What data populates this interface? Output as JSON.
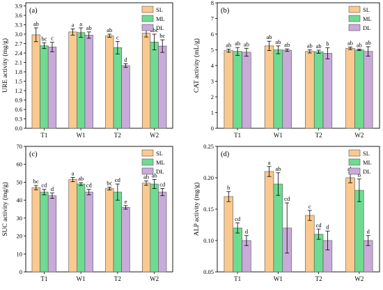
{
  "colors": {
    "SL": "#fac98f",
    "ML": "#6fdb90",
    "DL": "#c9abd9"
  },
  "legend_labels": [
    "SL",
    "ML",
    "DL"
  ],
  "chart_data": [
    {
      "panel": "(a)",
      "type": "bar",
      "ylabel": "URE activity (mg/g)",
      "ylim": [
        0,
        4.0
      ],
      "yticks": [
        "0.0",
        "0.3",
        "0.6",
        "0.9",
        "1.2",
        "1.5",
        "1.8",
        "2.1",
        "2.4",
        "2.7",
        "3.0",
        "3.3",
        "3.6",
        "3.9"
      ],
      "ytick_step": 0.3,
      "categories": [
        "T1",
        "W1",
        "T2",
        "W2"
      ],
      "series": [
        {
          "name": "SL",
          "values": [
            2.98,
            3.07,
            2.95,
            3.03
          ],
          "errors": [
            0.22,
            0.1,
            0.05,
            0.12
          ],
          "letters": [
            "ab",
            "a",
            "ab",
            "a"
          ]
        },
        {
          "name": "ML",
          "values": [
            2.63,
            3.05,
            2.57,
            2.75
          ],
          "errors": [
            0.09,
            0.15,
            0.2,
            0.25
          ],
          "letters": [
            "bc",
            "a",
            "c",
            "abc"
          ]
        },
        {
          "name": "DL",
          "values": [
            2.59,
            2.97,
            2.0,
            2.62
          ],
          "errors": [
            0.15,
            0.1,
            0.06,
            0.2
          ],
          "letters": [
            "c",
            "ab",
            "d",
            "bc"
          ]
        }
      ],
      "legend": "top-right",
      "grid": false
    },
    {
      "panel": "(b)",
      "type": "bar",
      "ylabel": "CAT activity (mL/g)",
      "ylim": [
        0,
        8
      ],
      "yticks": [
        "0",
        "1",
        "2",
        "3",
        "4",
        "5",
        "6",
        "7",
        "8"
      ],
      "ytick_step": 1,
      "categories": [
        "T1",
        "W1",
        "T2",
        "W2"
      ],
      "series": [
        {
          "name": "SL",
          "values": [
            4.95,
            5.25,
            4.9,
            5.1
          ],
          "errors": [
            0.1,
            0.3,
            0.1,
            0.08
          ],
          "letters": [
            "ab",
            "ab",
            "ab",
            "ab"
          ]
        },
        {
          "name": "ML",
          "values": [
            4.9,
            5.0,
            4.88,
            5.0
          ],
          "errors": [
            0.25,
            0.25,
            0.1,
            0.05
          ],
          "letters": [
            "ab",
            "ab",
            "ab",
            "ab"
          ]
        },
        {
          "name": "DL",
          "values": [
            4.85,
            4.98,
            4.78,
            4.9
          ],
          "errors": [
            0.25,
            0.08,
            0.35,
            0.3
          ],
          "letters": [
            "ab",
            "ab",
            "b",
            "ab"
          ]
        }
      ],
      "legend": "top-right",
      "grid": false
    },
    {
      "panel": "(c)",
      "type": "bar",
      "ylabel": "SUC activity (mg/g)",
      "ylim": [
        0,
        70
      ],
      "yticks": [
        "0",
        "10",
        "20",
        "30",
        "40",
        "50",
        "60",
        "70"
      ],
      "ytick_step": 10,
      "categories": [
        "T1",
        "W1",
        "T2",
        "W2"
      ],
      "series": [
        {
          "name": "SL",
          "values": [
            47,
            51.5,
            46.5,
            49.5
          ],
          "errors": [
            1.2,
            1.2,
            0.8,
            1.2
          ],
          "letters": [
            "bc",
            "a",
            "bc",
            "ab"
          ]
        },
        {
          "name": "ML",
          "values": [
            44.5,
            49,
            44.5,
            49
          ],
          "errors": [
            1.5,
            0.8,
            4.5,
            2.5
          ],
          "letters": [
            "cd",
            "ab",
            "cd",
            "ab"
          ]
        },
        {
          "name": "DL",
          "values": [
            42.5,
            44.5,
            36,
            44.5
          ],
          "errors": [
            1.5,
            1.5,
            1,
            2
          ],
          "letters": [
            "d",
            "cd",
            "e",
            "cd"
          ]
        }
      ],
      "legend": "top-right",
      "grid": false
    },
    {
      "panel": "(d)",
      "type": "bar",
      "ylabel": "ALP activity (mg/g)",
      "ylim": [
        0.05,
        0.25
      ],
      "yticks": [
        "0.05",
        "0.10",
        "0.15",
        "0.20",
        "0.25"
      ],
      "ytick_step": 0.05,
      "categories": [
        "T1",
        "W1",
        "T2",
        "W2"
      ],
      "series": [
        {
          "name": "SL",
          "values": [
            0.17,
            0.21,
            0.14,
            0.2
          ],
          "errors": [
            0.008,
            0.008,
            0.008,
            0.008
          ],
          "letters": [
            "b",
            "a",
            "c",
            "ab"
          ]
        },
        {
          "name": "ML",
          "values": [
            0.12,
            0.19,
            0.11,
            0.18
          ],
          "errors": [
            0.008,
            0.018,
            0.008,
            0.018
          ],
          "letters": [
            "cd",
            "ab",
            "cd",
            "b"
          ]
        },
        {
          "name": "DL",
          "values": [
            0.1,
            0.12,
            0.1,
            0.1
          ],
          "errors": [
            0.008,
            0.04,
            0.015,
            0.008
          ],
          "letters": [
            "d",
            "cd",
            "d",
            "d"
          ]
        }
      ],
      "legend": "top-right",
      "grid": false
    }
  ]
}
